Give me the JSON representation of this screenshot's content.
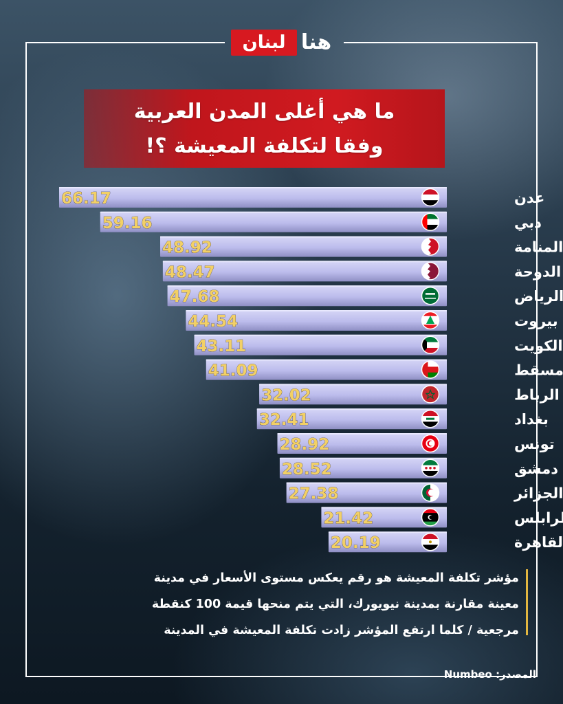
{
  "logo": {
    "part1": "لبنان",
    "part2": "هنا"
  },
  "title": {
    "line1": "ما هي أغلى المدن العربية",
    "line2": "وفقا لتكلفة المعيشة ؟!"
  },
  "chart_data": {
    "type": "bar",
    "orientation": "horizontal",
    "categories": [
      "عدن",
      "دبي",
      "المنامة",
      "الدوحة",
      "الرياض",
      "بيروت",
      "الكويت",
      "مسقط",
      "الرباط",
      "بغداد",
      "تونس",
      "دمشق",
      "الجزائر",
      "طرابلس",
      "القاهرة"
    ],
    "value_labels": [
      "66.17",
      "59.16",
      "48.92",
      "48.47",
      "47.68",
      "44.54",
      "43.11",
      "41.09",
      "32.02",
      "32.41",
      "28.92",
      "28.52",
      "27.38",
      "21.42",
      "20.19"
    ],
    "values": [
      66.17,
      59.16,
      48.92,
      48.47,
      47.68,
      44.54,
      43.11,
      41.09,
      32.02,
      32.41,
      28.92,
      28.52,
      27.38,
      21.42,
      20.19
    ],
    "flags": [
      "yemen-flag-icon",
      "uae-flag-icon",
      "bahrain-flag-icon",
      "qatar-flag-icon",
      "saudi-flag-icon",
      "lebanon-flag-icon",
      "kuwait-flag-icon",
      "oman-flag-icon",
      "morocco-flag-icon",
      "iraq-flag-icon",
      "tunisia-flag-icon",
      "syria-flag-icon",
      "algeria-flag-icon",
      "libya-flag-icon",
      "egypt-flag-icon"
    ],
    "bar_color": "#bcbcec",
    "label_color": "#f2d066"
  },
  "description": {
    "line1": "مؤشر تكلفة المعيشة هو رقم يعكس مستوى الأسعار في مدينة",
    "line2": "معينة مقارنة بمدينة نيويورك، التي يتم منحها قيمة 100 كنقطة",
    "line3": "مرجعية / كلما ارتفع المؤشر زادت تكلفة المعيشة في المدينة"
  },
  "source": {
    "label": "المصدر:",
    "value": "Numbeo"
  }
}
